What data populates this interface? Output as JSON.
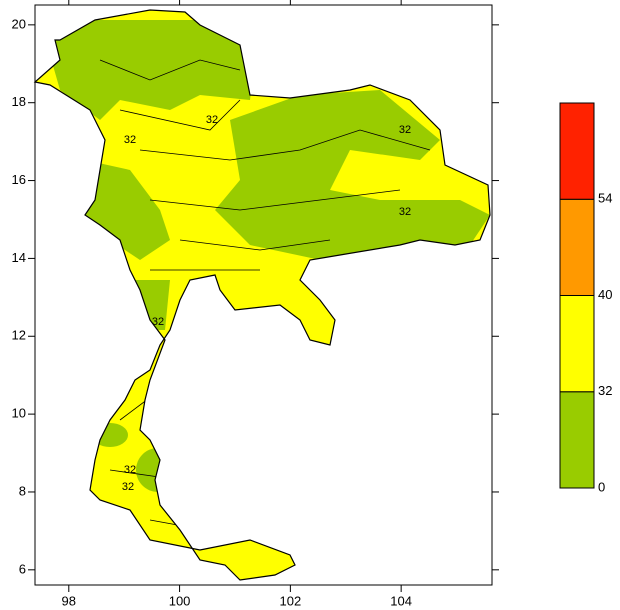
{
  "chart_data": {
    "type": "map",
    "xlim": [
      97.39,
      105.64
    ],
    "xticks": [
      98,
      100,
      102,
      104
    ],
    "ylim": [
      5.61,
      20.51
    ],
    "yticks": [
      6,
      8,
      10,
      12,
      14,
      16,
      18,
      20
    ],
    "contour_labels": [
      "32",
      "32",
      "32",
      "32",
      "32",
      "32",
      "32"
    ],
    "colorbar": {
      "levels": [
        0,
        32,
        40,
        54
      ],
      "colors": [
        "#99cc00",
        "#ffff00",
        "#ff9900",
        "#ff2200"
      ]
    }
  }
}
